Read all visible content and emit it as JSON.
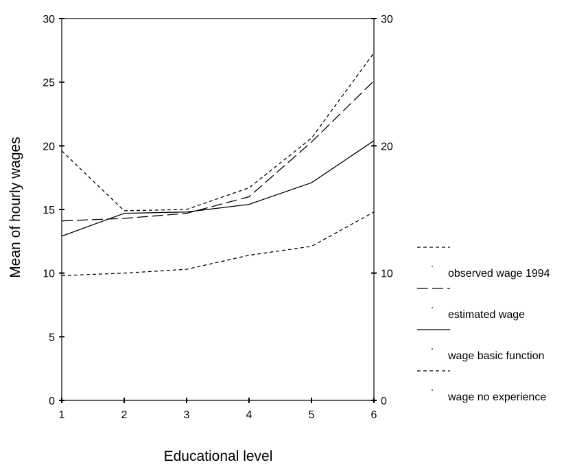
{
  "chart_data": {
    "type": "line",
    "xlabel": "Educational level",
    "ylabel": "Mean of hourly wages",
    "x": [
      1,
      2,
      3,
      4,
      5,
      6
    ],
    "xlim": [
      1,
      6
    ],
    "ylim": [
      0,
      30
    ],
    "left_y_ticks": [
      0,
      5,
      10,
      15,
      20,
      25,
      30
    ],
    "right_y_ticks": [
      0,
      10,
      20,
      30
    ],
    "grid": false,
    "legend_position": "right",
    "series": [
      {
        "name": "observed wage 1994",
        "style": "short-dash",
        "color": "#000000",
        "values": [
          19.6,
          14.9,
          15.0,
          16.7,
          20.6,
          27.3
        ]
      },
      {
        "name": "estimated wage",
        "style": "long-dash",
        "color": "#000000",
        "values": [
          14.1,
          14.3,
          14.7,
          16.0,
          20.3,
          25.1
        ]
      },
      {
        "name": "wage basic function",
        "style": "solid",
        "color": "#000000",
        "values": [
          12.9,
          14.7,
          14.8,
          15.4,
          17.1,
          20.4
        ]
      },
      {
        "name": "wage no experience",
        "style": "short-dash",
        "color": "#000000",
        "values": [
          9.8,
          10.0,
          10.3,
          11.4,
          12.1,
          14.8
        ]
      }
    ]
  }
}
